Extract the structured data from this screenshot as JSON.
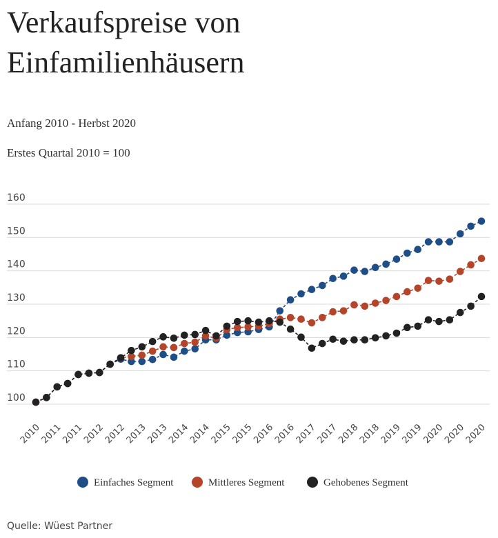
{
  "chart_data": {
    "type": "line",
    "title": [
      "Verkaufspreise von",
      "Einfamilienhäusern"
    ],
    "subtitle": "Anfang 2010 - Herbst 2020",
    "note": "Erstes Quartal 2010  = 100",
    "source": "Quelle: Wüest Partner",
    "categories": [
      "2010",
      null,
      "2011",
      null,
      "2011",
      null,
      "2012",
      null,
      "2012",
      null,
      "2013",
      null,
      "2013",
      null,
      "2014",
      null,
      "2014",
      null,
      "2015",
      null,
      "2015",
      null,
      "2016",
      null,
      "2016",
      null,
      "2017",
      null,
      "2017",
      null,
      "2018",
      null,
      "2018",
      null,
      "2019",
      null,
      "2019",
      null,
      "2020",
      null,
      "2020",
      null,
      "2020"
    ],
    "series": [
      {
        "name": "Einfaches Segment",
        "color": "#1f4e87",
        "values": [
          100.6,
          102,
          105.2,
          106.2,
          108.9,
          109.3,
          109.5,
          112,
          113.5,
          112.8,
          112.8,
          113.4,
          114.9,
          114.1,
          115.9,
          116.6,
          119.3,
          119.3,
          120.7,
          121.5,
          121.7,
          122.4,
          123.2,
          128,
          131.3,
          133.1,
          134.4,
          135.6,
          137.7,
          138.4,
          140.2,
          139.8,
          141,
          142,
          143.5,
          145.3,
          146.4,
          148.7,
          148.7,
          148.7,
          151.1,
          153.4,
          154.9
        ]
      },
      {
        "name": "Mittleres Segment",
        "color": "#b5452a",
        "values": [
          100.6,
          102,
          105.2,
          106.2,
          108.9,
          109.3,
          109.5,
          112,
          113.9,
          114.3,
          114.7,
          115.9,
          117.2,
          117,
          118.2,
          118.6,
          120.5,
          119.8,
          122.4,
          123,
          123.2,
          123.4,
          124.2,
          125.5,
          126,
          125.5,
          124.4,
          126,
          127.7,
          128,
          129.8,
          129.4,
          130.3,
          131.1,
          132.3,
          133.7,
          134.8,
          137.1,
          136.9,
          137.5,
          139.8,
          141.8,
          143.7
        ]
      },
      {
        "name": "Gehobenes Segment",
        "color": "#222222",
        "values": [
          100.6,
          102,
          105.2,
          106.2,
          108.9,
          109.3,
          109.5,
          112,
          113.9,
          116.1,
          117.2,
          118.8,
          120.2,
          119.8,
          120.7,
          120.9,
          122.1,
          120.5,
          123.4,
          124.8,
          125,
          124.6,
          125,
          124.6,
          122.5,
          120.1,
          116.8,
          118.2,
          119.5,
          118.9,
          119.3,
          119.3,
          119.9,
          120.5,
          121.3,
          123,
          123.4,
          125.3,
          124.8,
          125.3,
          127.5,
          129.4,
          132.3
        ]
      }
    ],
    "ylim": [
      97,
      162
    ],
    "yticks": [
      100,
      110,
      120,
      130,
      140,
      150,
      160
    ],
    "grid": true
  }
}
